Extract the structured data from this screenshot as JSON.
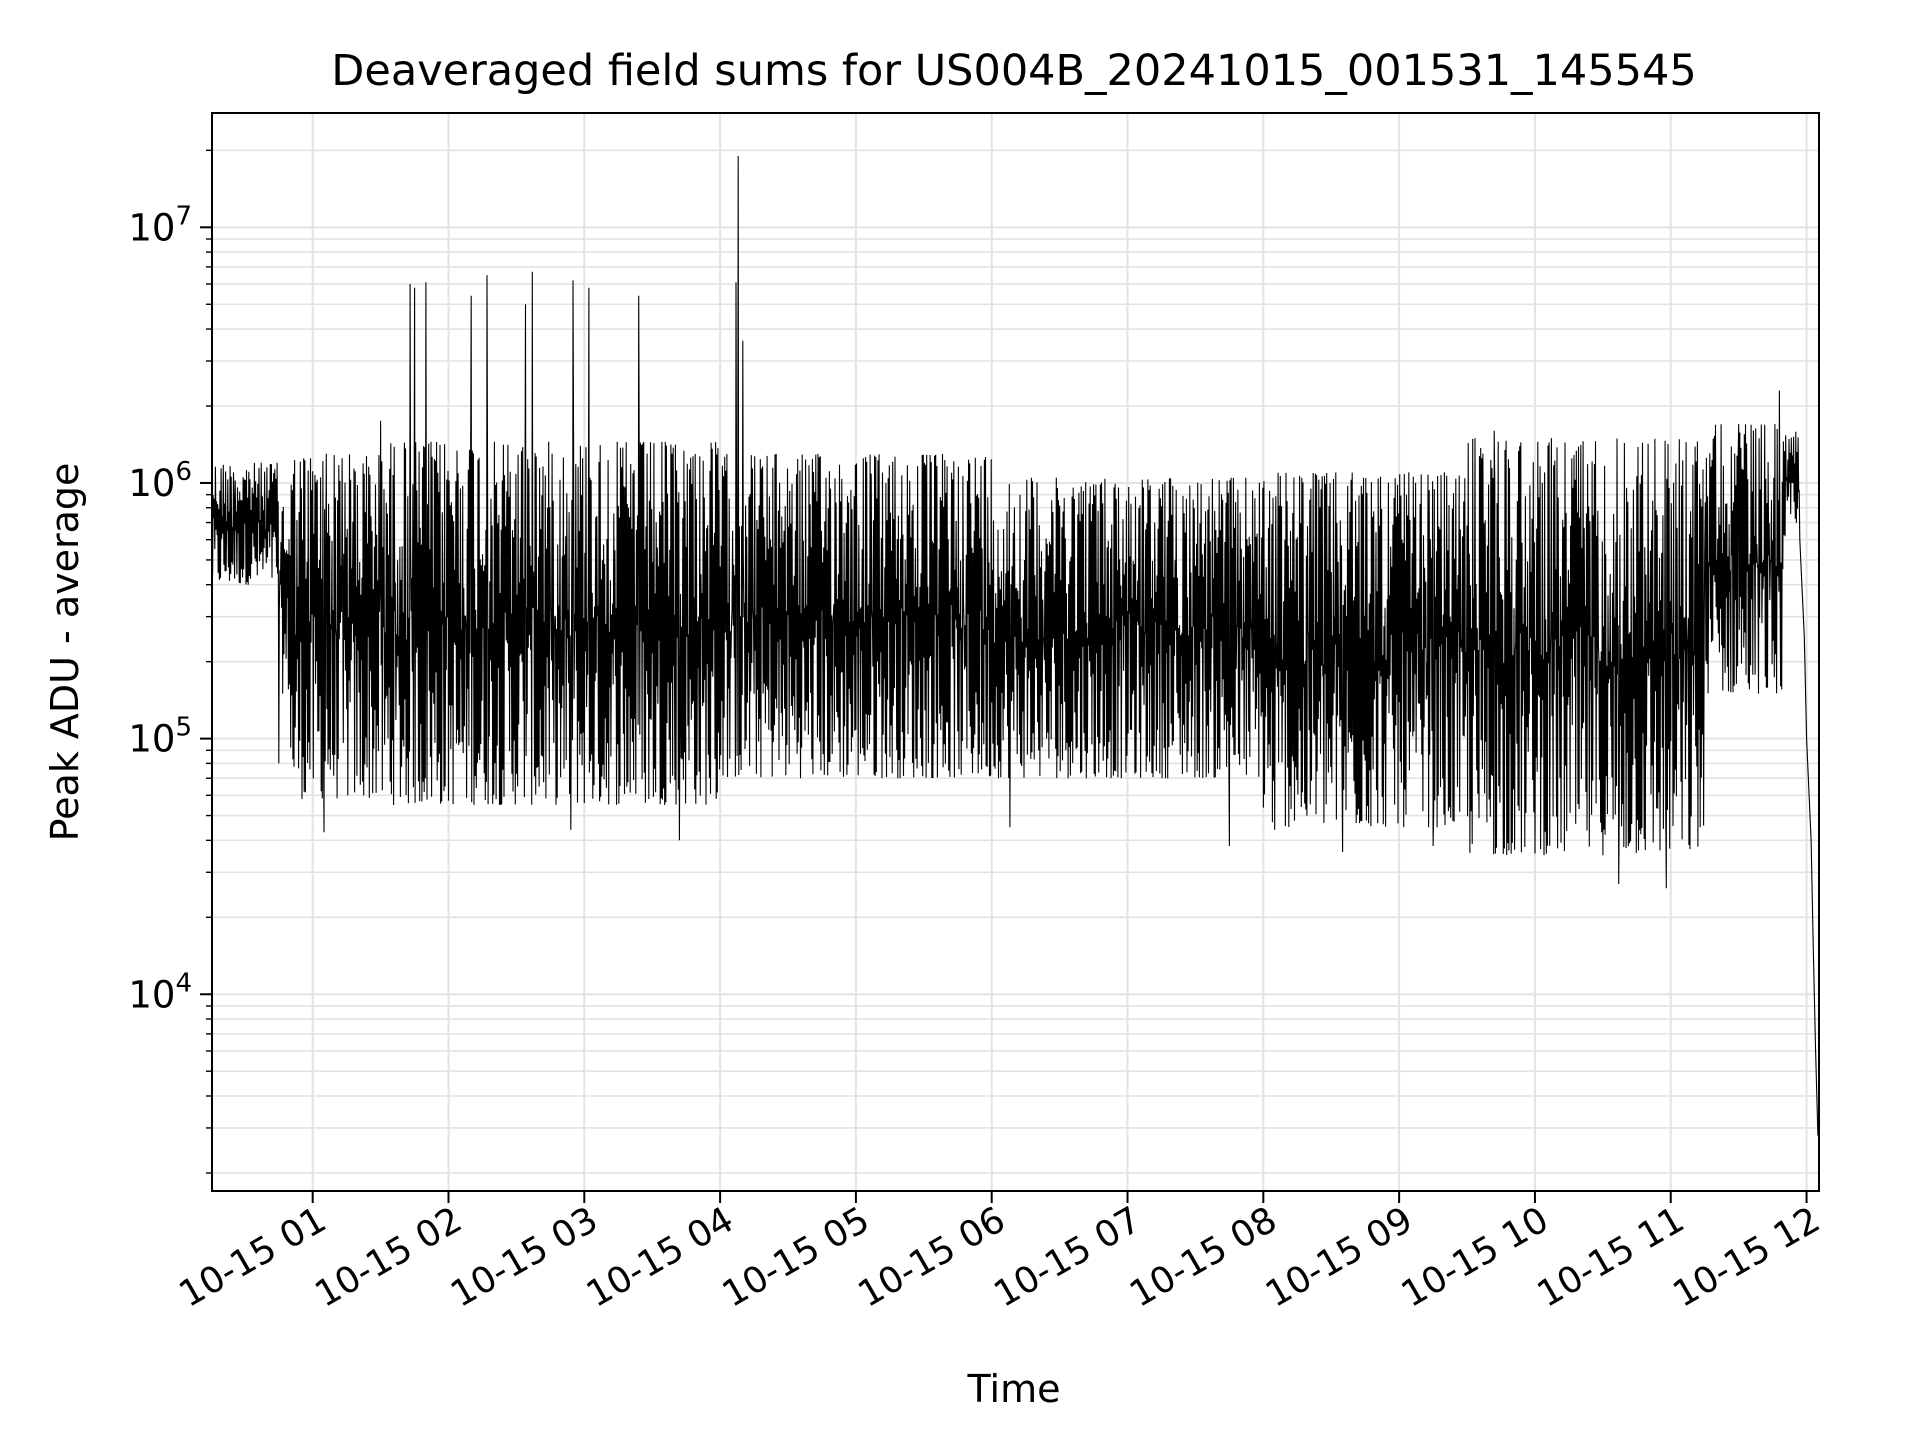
{
  "chart_data": {
    "type": "line",
    "title": "Deaveraged field sums for US004B_20241015_001531_145545",
    "xlabel": "Time",
    "ylabel": "Peak ADU - average",
    "y_scale": "log",
    "ylim": [
      1700,
      28000000
    ],
    "xlim": [
      "10-15 00:15:31",
      "10-15 12:05:30"
    ],
    "grid": true,
    "line_color": "#000000",
    "grid_color": "#e3e3e3",
    "x_ticks": [
      "10-15 01",
      "10-15 02",
      "10-15 03",
      "10-15 04",
      "10-15 05",
      "10-15 06",
      "10-15 07",
      "10-15 08",
      "10-15 09",
      "10-15 10",
      "10-15 11",
      "10-15 12"
    ],
    "y_ticks": [
      {
        "value": 10000,
        "base": "10",
        "exp": "4"
      },
      {
        "value": 100000,
        "base": "10",
        "exp": "5"
      },
      {
        "value": 1000000,
        "base": "10",
        "exp": "6"
      },
      {
        "value": 10000000,
        "base": "10",
        "exp": "7"
      }
    ],
    "envelope_segments": [
      {
        "start": "00:15",
        "end": "00:45",
        "low": 400000,
        "high": 1200000
      },
      {
        "start": "00:45",
        "end": "00:50",
        "low": 150000,
        "high": 900000
      },
      {
        "start": "00:50",
        "end": "01:30",
        "low": 58000,
        "high": 1300000
      },
      {
        "start": "01:30",
        "end": "04:00",
        "low": 55000,
        "high": 1450000
      },
      {
        "start": "04:00",
        "end": "06:00",
        "low": 70000,
        "high": 1300000
      },
      {
        "start": "06:00",
        "end": "08:00",
        "low": 70000,
        "high": 1050000
      },
      {
        "start": "08:00",
        "end": "09:30",
        "low": 45000,
        "high": 1100000
      },
      {
        "start": "09:30",
        "end": "11:15",
        "low": 35000,
        "high": 1500000
      },
      {
        "start": "11:15",
        "end": "11:50",
        "low": 150000,
        "high": 1700000
      },
      {
        "start": "11:50",
        "end": "11:57",
        "low": 600000,
        "high": 1600000
      }
    ],
    "spikes": [
      {
        "time": "00:25",
        "value": 1100000
      },
      {
        "time": "01:06",
        "value": 1300000
      },
      {
        "time": "01:13",
        "value": 1250000
      },
      {
        "time": "01:30",
        "value": 1750000
      },
      {
        "time": "01:43",
        "value": 6000000
      },
      {
        "time": "01:45",
        "value": 5800000
      },
      {
        "time": "01:50",
        "value": 6100000
      },
      {
        "time": "02:10",
        "value": 5400000
      },
      {
        "time": "02:17",
        "value": 6500000
      },
      {
        "time": "02:34",
        "value": 5000000
      },
      {
        "time": "02:37",
        "value": 6700000
      },
      {
        "time": "02:55",
        "value": 6200000
      },
      {
        "time": "03:02",
        "value": 5800000
      },
      {
        "time": "03:24",
        "value": 5400000
      },
      {
        "time": "04:07",
        "value": 6100000
      },
      {
        "time": "04:08",
        "value": 19000000
      },
      {
        "time": "04:10",
        "value": 3600000
      },
      {
        "time": "09:42",
        "value": 1600000
      },
      {
        "time": "11:30",
        "value": 1700000
      },
      {
        "time": "11:48",
        "value": 2300000
      }
    ],
    "dips": [
      {
        "time": "00:45",
        "value": 80000
      },
      {
        "time": "01:05",
        "value": 43000
      },
      {
        "time": "02:54",
        "value": 44000
      },
      {
        "time": "03:42",
        "value": 40000
      },
      {
        "time": "06:08",
        "value": 45000
      },
      {
        "time": "07:45",
        "value": 38000
      },
      {
        "time": "08:05",
        "value": 44000
      },
      {
        "time": "08:35",
        "value": 36000
      },
      {
        "time": "09:15",
        "value": 38000
      },
      {
        "time": "10:37",
        "value": 27000
      },
      {
        "time": "10:58",
        "value": 26000
      }
    ],
    "tail": [
      {
        "time": "11:57",
        "value": 600000
      },
      {
        "time": "11:59",
        "value": 250000
      },
      {
        "time": "12:00",
        "value": 100000
      },
      {
        "time": "12:02",
        "value": 40000
      },
      {
        "time": "12:03",
        "value": 15000
      },
      {
        "time": "12:04",
        "value": 6000
      },
      {
        "time": "12:05",
        "value": 2800
      }
    ]
  }
}
